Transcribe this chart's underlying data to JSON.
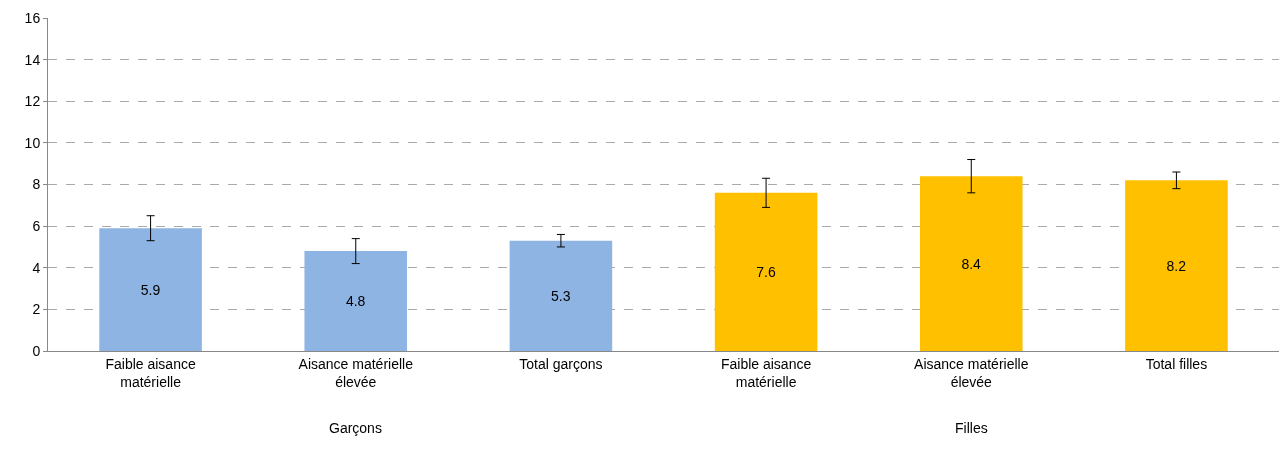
{
  "chart_data": {
    "type": "bar",
    "categories": [
      "Faible aisance matérielle",
      "Aisance matérielle élevée",
      "Total garçons",
      "Faible aisance matérielle",
      "Aisance matérielle élevée",
      "Total filles"
    ],
    "values": [
      5.9,
      4.8,
      5.3,
      7.6,
      8.4,
      8.2
    ],
    "colors": [
      "#8eb4e3",
      "#8eb4e3",
      "#8eb4e3",
      "#ffc000",
      "#ffc000",
      "#ffc000"
    ],
    "errors": [
      0.6,
      0.6,
      0.3,
      0.7,
      0.8,
      0.4
    ],
    "data_labels": true,
    "annotations": [
      "Garçons",
      "Filles"
    ],
    "ylim": [
      0,
      16
    ],
    "yticks": [
      0,
      2,
      4,
      6,
      8,
      10,
      12,
      14,
      16
    ],
    "grid": "y"
  }
}
